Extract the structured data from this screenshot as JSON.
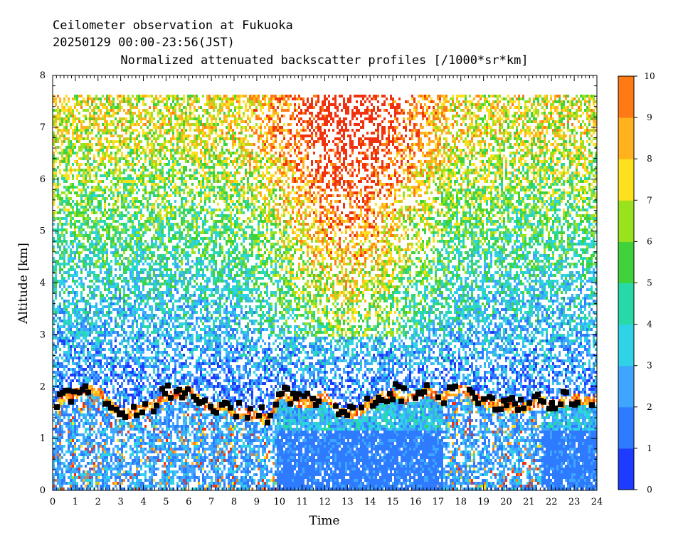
{
  "chart_data": {
    "type": "heatmap",
    "title": "Ceilometer observation at Fukuoka",
    "subtitle": "20250129  00:00-23:56(JST)",
    "variable": "Normalized attenuated backscatter profiles [/1000*sr*km]",
    "xlabel": "Time",
    "ylabel": "Altitude [km]",
    "xlim": [
      0,
      24
    ],
    "ylim": [
      0,
      8
    ],
    "x_ticks": [
      "0",
      "1",
      "2",
      "3",
      "4",
      "5",
      "6",
      "7",
      "8",
      "9",
      "10",
      "11",
      "12",
      "13",
      "14",
      "15",
      "16",
      "17",
      "18",
      "19",
      "20",
      "21",
      "22",
      "23",
      "24"
    ],
    "y_ticks": [
      "0",
      "1",
      "2",
      "3",
      "4",
      "5",
      "6",
      "7",
      "8"
    ],
    "data_top_altitude_km": 7.65,
    "colorbar": {
      "range": [
        0,
        10
      ],
      "ticks": [
        "0",
        "1",
        "2",
        "3",
        "4",
        "5",
        "6",
        "7",
        "8",
        "9",
        "10"
      ],
      "colors": [
        "#1e3cff",
        "#2f7bff",
        "#3fa6ff",
        "#2fd2e6",
        "#28d9a8",
        "#3fd23a",
        "#9be21e",
        "#ffe01e",
        "#ffb21e",
        "#ff7a14",
        "#f0320f"
      ]
    },
    "cloud_base_km": {
      "x": [
        0,
        0.5,
        1,
        1.5,
        2,
        2.5,
        3,
        3.5,
        4,
        4.5,
        5,
        5.5,
        6,
        6.5,
        7,
        7.5,
        8,
        8.5,
        9,
        9.5,
        10,
        10.5,
        11,
        11.5,
        12,
        12.5,
        13,
        13.5,
        14,
        14.5,
        15,
        15.5,
        16,
        16.5,
        17,
        17.5,
        18,
        18.5,
        19,
        19.5,
        20,
        20.5,
        21,
        21.5,
        22,
        22.5,
        23,
        23.5,
        24
      ],
      "y": [
        1.6,
        1.85,
        1.9,
        2.0,
        1.95,
        1.7,
        1.5,
        1.55,
        1.6,
        1.7,
        1.85,
        1.9,
        2.0,
        1.75,
        1.6,
        1.7,
        1.5,
        1.55,
        1.45,
        1.4,
        1.9,
        1.8,
        1.7,
        1.75,
        1.85,
        1.6,
        1.5,
        1.55,
        1.7,
        1.85,
        1.9,
        1.8,
        1.85,
        1.95,
        1.8,
        1.9,
        2.0,
        1.85,
        1.75,
        1.7,
        1.65,
        1.6,
        1.65,
        1.75,
        1.7,
        1.75,
        1.8,
        1.75,
        1.8
      ]
    }
  }
}
